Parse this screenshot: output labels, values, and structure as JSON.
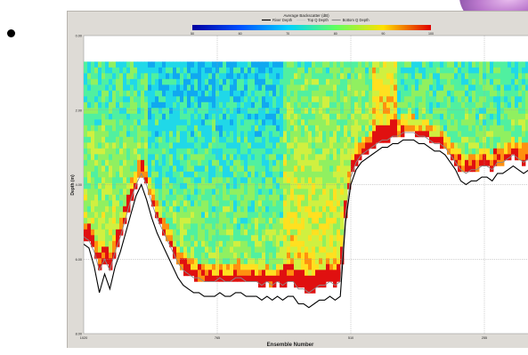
{
  "chart_data": {
    "type": "heatmap",
    "colorbar": {
      "title": "Average Backscatter (dB)",
      "ticks": [
        "50",
        "60",
        "70",
        "80",
        "90",
        "100"
      ],
      "min": 50,
      "max": 100
    },
    "legend": {
      "items": [
        {
          "label": "River Depth",
          "color": "#000000"
        },
        {
          "label": "Top Q Depth",
          "color": "#cccccc"
        },
        {
          "label": "Bottom Q Depth",
          "color": "#8a8a8a"
        }
      ]
    },
    "xlabel": "Ensemble Number",
    "ylabel": "Depth (m)",
    "x_tick_labels": [
      "1020",
      "765",
      "510",
      "255"
    ],
    "y_tick_labels": [
      "0.00",
      "2.00",
      "4.00",
      "6.00",
      "8.00"
    ],
    "y_range": [
      0,
      8
    ],
    "x_range": [
      1020,
      170
    ],
    "grid": true,
    "profiles": {
      "x": [
        1020,
        1010,
        1000,
        990,
        980,
        970,
        960,
        950,
        940,
        930,
        920,
        910,
        900,
        890,
        880,
        870,
        860,
        850,
        840,
        830,
        820,
        810,
        800,
        790,
        780,
        770,
        760,
        750,
        740,
        730,
        720,
        710,
        700,
        690,
        680,
        670,
        660,
        650,
        640,
        630,
        620,
        610,
        600,
        590,
        580,
        570,
        560,
        550,
        540,
        530,
        520,
        510,
        500,
        490,
        480,
        470,
        460,
        450,
        440,
        430,
        420,
        410,
        400,
        390,
        380,
        370,
        360,
        350,
        340,
        330,
        320,
        310,
        300,
        290,
        280,
        270,
        260,
        250,
        240,
        230,
        220,
        210,
        200,
        190,
        180,
        170
      ],
      "river_depth_m": [
        5.6,
        5.7,
        6.2,
        6.9,
        6.4,
        6.8,
        6.2,
        5.8,
        5.3,
        4.8,
        4.3,
        4.0,
        4.4,
        4.9,
        5.3,
        5.6,
        5.9,
        6.2,
        6.5,
        6.7,
        6.8,
        6.9,
        6.9,
        7.0,
        7.0,
        7.0,
        6.9,
        7.0,
        7.0,
        6.9,
        6.9,
        7.0,
        7.0,
        7.0,
        7.1,
        7.0,
        7.1,
        7.0,
        7.1,
        7.0,
        7.0,
        7.2,
        7.2,
        7.3,
        7.2,
        7.1,
        7.1,
        7.0,
        7.1,
        7.0,
        5.0,
        4.0,
        3.6,
        3.4,
        3.3,
        3.2,
        3.1,
        3.0,
        3.0,
        2.9,
        2.9,
        2.8,
        2.8,
        2.8,
        2.9,
        2.9,
        3.0,
        3.1,
        3.1,
        3.2,
        3.4,
        3.6,
        3.9,
        4.0,
        3.9,
        3.9,
        3.8,
        3.8,
        3.9,
        3.7,
        3.7,
        3.6,
        3.5,
        3.6,
        3.7,
        3.6
      ],
      "bottom_q_depth_m": [
        5.4,
        5.5,
        5.8,
        6.3,
        6.0,
        6.3,
        5.8,
        5.4,
        4.9,
        4.4,
        4.0,
        3.7,
        4.0,
        4.5,
        4.9,
        5.2,
        5.5,
        5.8,
        6.1,
        6.3,
        6.4,
        6.5,
        6.5,
        6.6,
        6.6,
        6.6,
        6.5,
        6.6,
        6.6,
        6.5,
        6.5,
        6.6,
        6.6,
        6.6,
        6.7,
        6.6,
        6.7,
        6.6,
        6.7,
        6.6,
        6.6,
        6.8,
        6.8,
        6.9,
        6.8,
        6.7,
        6.7,
        6.6,
        6.7,
        6.6,
        4.8,
        3.8,
        3.4,
        3.2,
        3.1,
        3.0,
        2.9,
        2.8,
        2.8,
        2.7,
        2.7,
        2.6,
        2.6,
        2.6,
        2.7,
        2.7,
        2.8,
        2.9,
        2.9,
        3.0,
        3.2,
        3.4,
        3.6,
        3.7,
        3.6,
        3.6,
        3.5,
        3.5,
        3.6,
        3.4,
        3.4,
        3.3,
        3.2,
        3.3,
        3.4,
        3.3
      ]
    },
    "data_top_depth_m": 0.7,
    "backscatter_grid_note": "",
    "colors": {
      "frame_bg": "#dedbd6",
      "plot_bg": "#ffffff",
      "grid": "#c8c8c8"
    }
  }
}
